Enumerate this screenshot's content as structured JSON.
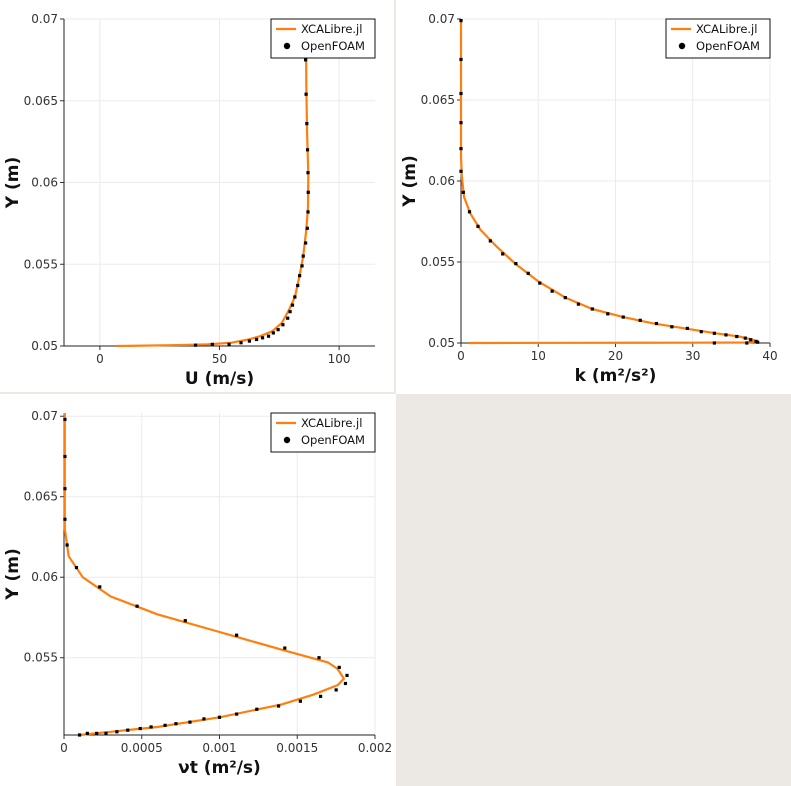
{
  "legend": {
    "line": "XCALibre.jl",
    "points": "OpenFOAM"
  },
  "colors": {
    "line": "#ff7f0e",
    "points": "#000000",
    "grid": "#ebebeb",
    "empty_panel": "#ece9e4"
  },
  "chart_data": [
    {
      "type": "line",
      "xlabel": "U (m/s)",
      "ylabel": "Y (m)",
      "xlim": [
        -15,
        115
      ],
      "ylim": [
        0.05,
        0.07
      ],
      "xticks": [
        0,
        50,
        100
      ],
      "yticks": [
        0.05,
        0.055,
        0.06,
        0.065,
        0.07
      ],
      "xtick_labels": [
        "0",
        "50",
        "100"
      ],
      "ytick_labels": [
        "0.05",
        "0.055",
        "0.06",
        "0.065",
        "0.07"
      ],
      "grid": true,
      "legend_position": "top-right",
      "series": [
        {
          "name": "XCALibre.jl",
          "kind": "line",
          "x": [
            7,
            30,
            45,
            55,
            62,
            67,
            72,
            76,
            79,
            81.5,
            83.5,
            85,
            86.3,
            87,
            87.1,
            86.6,
            86.3,
            86.1
          ],
          "y": [
            0.05,
            0.05005,
            0.0501,
            0.0502,
            0.0504,
            0.0506,
            0.0509,
            0.0514,
            0.0522,
            0.053,
            0.0543,
            0.0555,
            0.0571,
            0.0585,
            0.0605,
            0.063,
            0.066,
            0.07
          ]
        },
        {
          "name": "OpenFOAM",
          "kind": "scatter",
          "x": [
            86,
            86.2,
            86.5,
            86.8,
            87,
            87.1,
            87,
            86.7,
            86,
            85,
            84.5,
            83.5,
            82.7,
            81.5,
            80.5,
            79.5,
            78.5,
            76.5,
            74.5,
            72.5,
            70.5,
            68,
            65.5,
            62.5,
            59,
            54,
            47,
            40
          ],
          "y": [
            0.0675,
            0.0654,
            0.0636,
            0.062,
            0.0606,
            0.0594,
            0.0582,
            0.0572,
            0.0563,
            0.0555,
            0.0549,
            0.0543,
            0.0537,
            0.053,
            0.0525,
            0.0521,
            0.0517,
            0.0513,
            0.051,
            0.0508,
            0.0506,
            0.0505,
            0.0504,
            0.0503,
            0.0502,
            0.0501,
            0.0501,
            0.05005
          ]
        }
      ]
    },
    {
      "type": "line",
      "xlabel": "k (m²/s²)",
      "ylabel": "Y (m)",
      "xlim": [
        0,
        40
      ],
      "ylim": [
        0.05,
        0.07
      ],
      "xticks": [
        0,
        10,
        20,
        30,
        40
      ],
      "yticks": [
        0.05,
        0.055,
        0.06,
        0.065,
        0.07
      ],
      "xtick_labels": [
        "0",
        "10",
        "20",
        "30",
        "40"
      ],
      "ytick_labels": [
        "0.05",
        "0.055",
        "0.06",
        "0.065",
        "0.07"
      ],
      "grid": true,
      "legend_position": "top-right",
      "series": [
        {
          "name": "XCALibre.jl",
          "kind": "line",
          "x": [
            0,
            0,
            0.1,
            0.4,
            1.2,
            2.5,
            4.5,
            7,
            10,
            13.5,
            17,
            21,
            25,
            29,
            33,
            36,
            37.8,
            38.3,
            37,
            30,
            15,
            1
          ],
          "y": [
            0.07,
            0.0615,
            0.0603,
            0.059,
            0.058,
            0.057,
            0.056,
            0.0549,
            0.0538,
            0.0528,
            0.0521,
            0.0516,
            0.0512,
            0.0509,
            0.0506,
            0.0504,
            0.0502,
            0.05008,
            0.05003,
            0.05002,
            0.05001,
            0.05
          ]
        },
        {
          "name": "OpenFOAM",
          "kind": "scatter",
          "x": [
            0,
            0,
            0,
            0,
            0,
            0,
            0.3,
            1.1,
            2.2,
            3.8,
            5.4,
            7.1,
            8.7,
            10.2,
            11.8,
            13.5,
            15.2,
            17,
            19,
            21,
            23.2,
            25.3,
            27.3,
            29.3,
            31.1,
            32.8,
            34.3,
            35.7,
            36.8,
            37.5,
            38.2,
            38.4,
            37,
            32.8
          ],
          "y": [
            0.0699,
            0.0675,
            0.0654,
            0.0636,
            0.062,
            0.0606,
            0.0593,
            0.0581,
            0.0572,
            0.0563,
            0.0555,
            0.0549,
            0.0543,
            0.0537,
            0.0532,
            0.0528,
            0.0524,
            0.0521,
            0.0518,
            0.0516,
            0.0514,
            0.0512,
            0.051,
            0.0509,
            0.0507,
            0.0506,
            0.0505,
            0.0504,
            0.0503,
            0.0502,
            0.0501,
            0.05005,
            0.05,
            0.05
          ]
        }
      ]
    },
    {
      "type": "line",
      "xlabel": "νt (m²/s)",
      "ylabel": "Y (m)",
      "xlim": [
        0,
        0.002
      ],
      "ylim": [
        0.0502,
        0.0702
      ],
      "xticks": [
        0,
        0.0005,
        0.001,
        0.0015,
        0.002
      ],
      "yticks": [
        0.055,
        0.06,
        0.065,
        0.07
      ],
      "xtick_labels": [
        "0",
        "0.0005",
        "0.001",
        "0.0015",
        "0.002"
      ],
      "ytick_labels": [
        "0.055",
        "0.06",
        "0.065",
        "0.07"
      ],
      "grid": true,
      "legend_position": "top-right",
      "series": [
        {
          "name": "XCALibre.jl",
          "kind": "line",
          "x": [
            5e-06,
            5e-06,
            3e-05,
            0.00012,
            0.0003,
            0.0006,
            0.001,
            0.0014,
            0.0017,
            0.00176,
            0.0018,
            0.00176,
            0.0016,
            0.0014,
            0.001,
            0.0006,
            0.0003,
            0.0001
          ],
          "y": [
            0.0702,
            0.063,
            0.0613,
            0.06,
            0.0588,
            0.0577,
            0.0566,
            0.0555,
            0.0547,
            0.0543,
            0.0537,
            0.0533,
            0.0527,
            0.0521,
            0.0513,
            0.0507,
            0.0504,
            0.0502
          ]
        },
        {
          "name": "OpenFOAM",
          "kind": "scatter",
          "x": [
            6e-06,
            6e-06,
            6e-06,
            6e-06,
            2e-05,
            8e-05,
            0.00023,
            0.00047,
            0.00078,
            0.00111,
            0.00142,
            0.00164,
            0.00177,
            0.00182,
            0.00181,
            0.00175,
            0.00165,
            0.00152,
            0.00138,
            0.00124,
            0.00111,
            0.001,
            0.0009,
            0.00081,
            0.00072,
            0.00065,
            0.00056,
            0.00049,
            0.00041,
            0.00034,
            0.00027,
            0.00021,
            0.00015,
            0.0001
          ],
          "y": [
            0.0698,
            0.0675,
            0.0655,
            0.0636,
            0.062,
            0.0606,
            0.0594,
            0.0582,
            0.0573,
            0.0564,
            0.0556,
            0.055,
            0.0544,
            0.0539,
            0.0534,
            0.053,
            0.0526,
            0.0523,
            0.052,
            0.0518,
            0.0515,
            0.0513,
            0.0512,
            0.051,
            0.0509,
            0.0508,
            0.0507,
            0.0506,
            0.0505,
            0.0504,
            0.0503,
            0.0503,
            0.0503,
            0.0502
          ]
        }
      ]
    }
  ]
}
